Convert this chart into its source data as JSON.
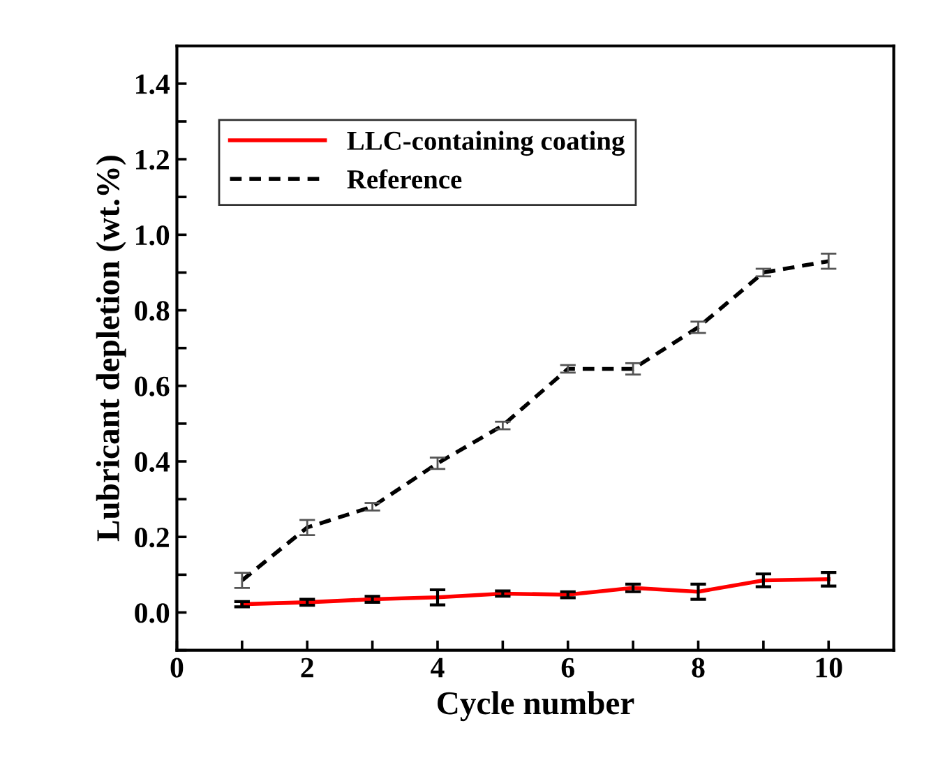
{
  "chart_data": {
    "type": "line",
    "xlabel": "Cycle number",
    "ylabel": "Lubricant depletion (wt.%)",
    "x": [
      1,
      2,
      3,
      4,
      5,
      6,
      7,
      8,
      9,
      10
    ],
    "series": [
      {
        "name": "LLC-containing coating",
        "color": "#ff0000",
        "line_style": "solid",
        "values": [
          0.022,
          0.027,
          0.035,
          0.04,
          0.05,
          0.047,
          0.065,
          0.055,
          0.085,
          0.088
        ],
        "errors": [
          0.007,
          0.008,
          0.008,
          0.02,
          0.007,
          0.008,
          0.01,
          0.02,
          0.017,
          0.018
        ]
      },
      {
        "name": "Reference",
        "color": "#000000",
        "line_style": "dashed",
        "values": [
          0.085,
          0.225,
          0.28,
          0.395,
          0.495,
          0.645,
          0.645,
          0.755,
          0.9,
          0.93
        ],
        "errors": [
          0.02,
          0.02,
          0.01,
          0.015,
          0.01,
          0.01,
          0.015,
          0.015,
          0.01,
          0.02
        ]
      }
    ],
    "xlim": [
      0,
      11
    ],
    "ylim": [
      -0.1,
      1.5
    ],
    "xticks": [
      0,
      {
        "value": 1,
        "label": null
      },
      2,
      {
        "value": 3,
        "label": null
      },
      4,
      {
        "value": 5,
        "label": null
      },
      6,
      {
        "value": 7,
        "label": null
      },
      8,
      {
        "value": 9,
        "label": null
      },
      10
    ],
    "yticks": [
      {
        "value": -0.1,
        "label": null
      },
      {
        "value": 0,
        "label": "0.0"
      },
      {
        "value": 0.1,
        "label": null
      },
      0.2,
      {
        "value": 0.3,
        "label": null
      },
      0.4,
      {
        "value": 0.5,
        "label": null
      },
      0.6,
      {
        "value": 0.7,
        "label": null
      },
      0.8,
      {
        "value": 0.9,
        "label": null
      },
      {
        "value": 1,
        "label": "1.0"
      },
      {
        "value": 1.1,
        "label": null
      },
      1.2,
      {
        "value": 1.3,
        "label": null
      },
      1.4
    ],
    "legend": "top left",
    "grid": false
  }
}
